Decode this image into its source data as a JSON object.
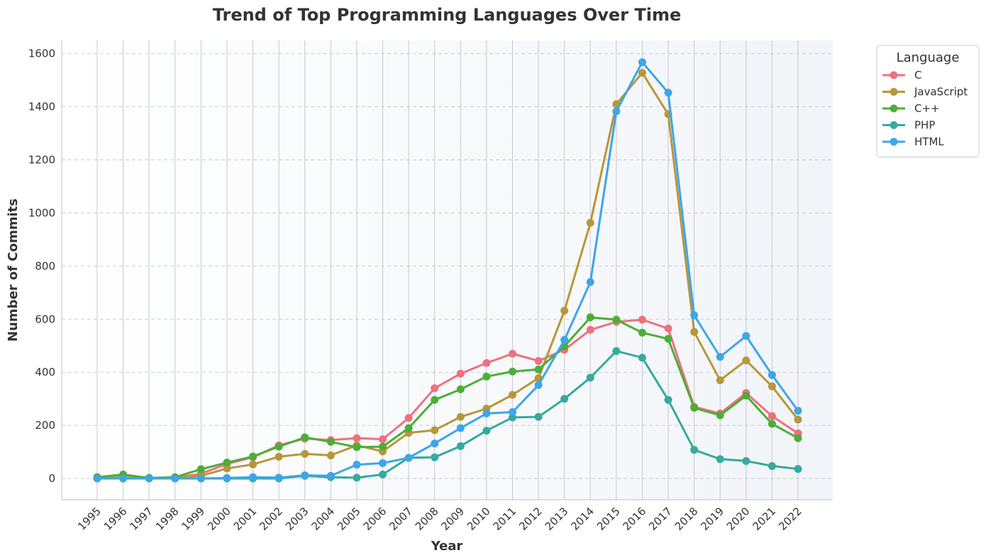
{
  "chart_data": {
    "type": "line",
    "title": "Trend of Top Programming Languages Over Time",
    "xlabel": "Year",
    "ylabel": "Number of Commits",
    "x": [
      "1995",
      "1996",
      "1997",
      "1998",
      "1999",
      "2000",
      "2001",
      "2002",
      "2003",
      "2004",
      "2005",
      "2006",
      "2007",
      "2008",
      "2009",
      "2010",
      "2011",
      "2012",
      "2013",
      "2014",
      "2015",
      "2016",
      "2017",
      "2018",
      "2019",
      "2020",
      "2021",
      "2022"
    ],
    "ylim": [
      -80,
      1650
    ],
    "yticks": [
      0,
      200,
      400,
      600,
      800,
      1000,
      1200,
      1400,
      1600
    ],
    "grid": "y-dashed, x-vertical-lines",
    "legend": {
      "title": "Language",
      "placement": "outside-top-right"
    },
    "series": [
      {
        "name": "C",
        "color": "#f0707e",
        "values": [
          2,
          12,
          2,
          3,
          18,
          55,
          80,
          125,
          150,
          145,
          152,
          148,
          228,
          340,
          395,
          435,
          470,
          443,
          485,
          560,
          590,
          598,
          565,
          270,
          245,
          322,
          235,
          170
        ]
      },
      {
        "name": "JavaScript",
        "color": "#b8973b",
        "values": [
          2,
          10,
          2,
          3,
          10,
          38,
          53,
          82,
          93,
          87,
          125,
          102,
          172,
          182,
          232,
          263,
          315,
          378,
          632,
          963,
          1410,
          1528,
          1372,
          552,
          370,
          445,
          347,
          222
        ]
      },
      {
        "name": "C++",
        "color": "#4bae38",
        "values": [
          5,
          15,
          2,
          5,
          35,
          60,
          83,
          120,
          155,
          138,
          118,
          120,
          190,
          296,
          336,
          384,
          403,
          411,
          498,
          607,
          598,
          549,
          526,
          266,
          238,
          312,
          206,
          152
        ]
      },
      {
        "name": "PHP",
        "color": "#35aa9f",
        "values": [
          0,
          0,
          0,
          0,
          0,
          0,
          0,
          0,
          10,
          5,
          3,
          15,
          78,
          80,
          122,
          180,
          230,
          232,
          300,
          380,
          480,
          455,
          296,
          108,
          73,
          66,
          47,
          36
        ]
      },
      {
        "name": "HTML",
        "color": "#3ea5e8",
        "values": [
          0,
          0,
          0,
          0,
          0,
          2,
          5,
          3,
          12,
          10,
          52,
          58,
          78,
          132,
          190,
          245,
          250,
          352,
          522,
          740,
          1383,
          1568,
          1453,
          615,
          458,
          537,
          390,
          255
        ]
      }
    ]
  }
}
